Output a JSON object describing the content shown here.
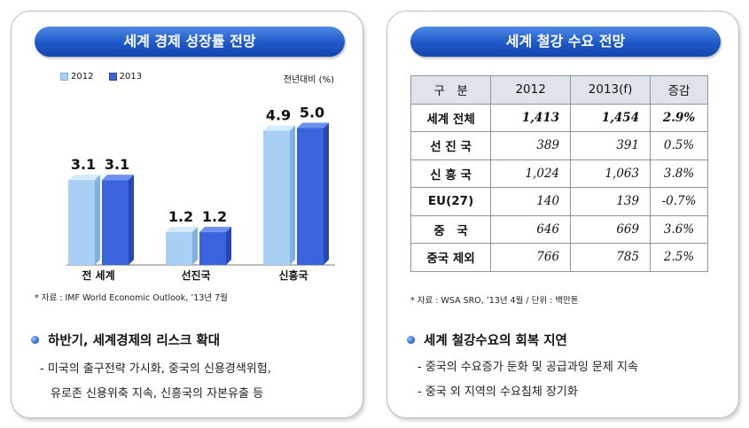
{
  "left": {
    "title": "세계 경제 성장률 전망",
    "unit": "전년대비 (%)",
    "source": "* 자료 : IMF World Economic Outlook, ’13년 7월",
    "bullet": "하반기, 세계경제의 리스크 확대",
    "sub_lines": [
      "- 미국의 출구전략 가시화, 중국의 신용경색위험,",
      "유로존 신용위축 지속, 신흥국의 자본유출 등"
    ]
  },
  "right": {
    "title": "세계 철강 수요 전망",
    "source": "* 자료 : WSA SRO, ’13년 4월 / 단위 : 백만톤",
    "bullet": "세계 철강수요의 회복 지연",
    "sub_lines": [
      "- 중국의 수요증가 둔화 및 공급과잉 문제 지속",
      "- 중국 외 지역의 수요침체 장기화"
    ],
    "table": {
      "headers": [
        "구　분",
        "2012",
        "2013(f)",
        "증감"
      ],
      "rows": [
        {
          "label": "세계 전체",
          "v2012": "1,413",
          "v2013": "1,454",
          "change": "2.9%",
          "bold": true
        },
        {
          "label": "선 진 국",
          "v2012": "389",
          "v2013": "391",
          "change": "0.5%",
          "bold": false
        },
        {
          "label": "신 흥 국",
          "v2012": "1,024",
          "v2013": "1,063",
          "change": "3.8%",
          "bold": false
        },
        {
          "label": "EU(27)",
          "v2012": "140",
          "v2013": "139",
          "change": "-0.7%",
          "bold": false
        },
        {
          "label": "중　국",
          "v2012": "646",
          "v2013": "669",
          "change": "3.6%",
          "bold": false
        },
        {
          "label": "중국 제외",
          "v2012": "766",
          "v2013": "785",
          "change": "2.5%",
          "bold": false
        }
      ]
    }
  },
  "colors": {
    "s2012": "#a8d0f4",
    "s2013": "#3a64dc",
    "title_bg": "#1d58c8"
  },
  "chart_data": {
    "type": "bar",
    "categories": [
      "전 세계",
      "선진국",
      "신흥국"
    ],
    "series": [
      {
        "name": "2012",
        "values": [
          3.1,
          1.2,
          4.9
        ]
      },
      {
        "name": "2013",
        "values": [
          3.1,
          1.2,
          5.0
        ]
      }
    ],
    "ylim": [
      0,
      5.5
    ],
    "legend": "top-left",
    "grid": false
  }
}
